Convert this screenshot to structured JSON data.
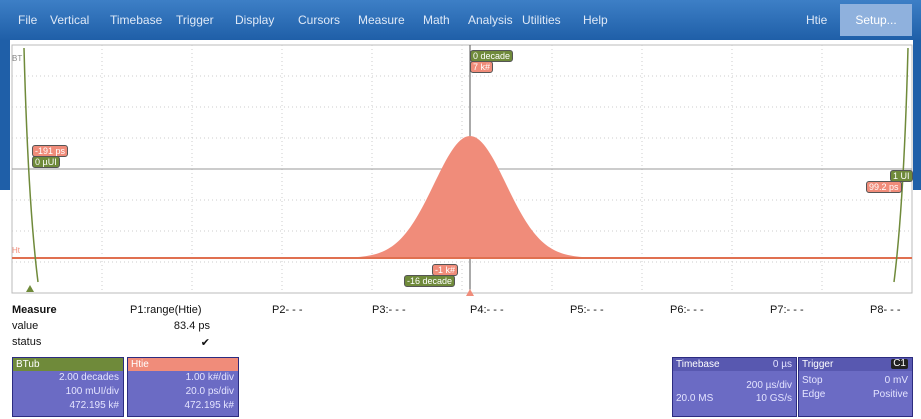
{
  "menu": {
    "items": [
      "File",
      "Vertical",
      "Timebase",
      "Trigger",
      "Display",
      "Cursors",
      "Measure",
      "Math",
      "Analysis",
      "Utilities",
      "Help"
    ],
    "right": [
      "Htie",
      "Setup..."
    ]
  },
  "plot": {
    "trace_left": "BT",
    "trace_low": "Ht",
    "cursor_top": [
      "0 decade",
      "7 k#"
    ],
    "cursor_left": [
      "-191 ps",
      "0 µUI"
    ],
    "cursor_right": [
      "1 UI",
      "99.2 ps"
    ],
    "cursor_bottom": [
      "-1 k#",
      "-16 decade"
    ]
  },
  "measure": {
    "headers": [
      "Measure",
      "P1:range(Htie)",
      "P2- - -",
      "P3:- - -",
      "P4:- - -",
      "P5:- - -",
      "P6:- - -",
      "P7:- - -",
      "P8- - -"
    ],
    "rows": [
      [
        "value",
        "83.4 ps"
      ],
      [
        "status",
        "✔"
      ]
    ]
  },
  "boxes": {
    "btub": {
      "title": "BTub",
      "lines": [
        "2.00 decades",
        "100 mUI/div",
        "472.195 k#"
      ]
    },
    "htie": {
      "title": "Htie",
      "lines": [
        "1.00 k#/div",
        "20.0 ps/div",
        "472.195 k#"
      ]
    },
    "timebase": {
      "title": "Timebase",
      "offset": "0 µs",
      "scale": "200 µs/div",
      "samples": "20.0 MS",
      "rate": "10 GS/s"
    },
    "trigger": {
      "title": "Trigger",
      "channel": "C1",
      "mode": "Stop",
      "level": "0 mV",
      "type": "Edge",
      "slope": "Positive"
    }
  }
}
